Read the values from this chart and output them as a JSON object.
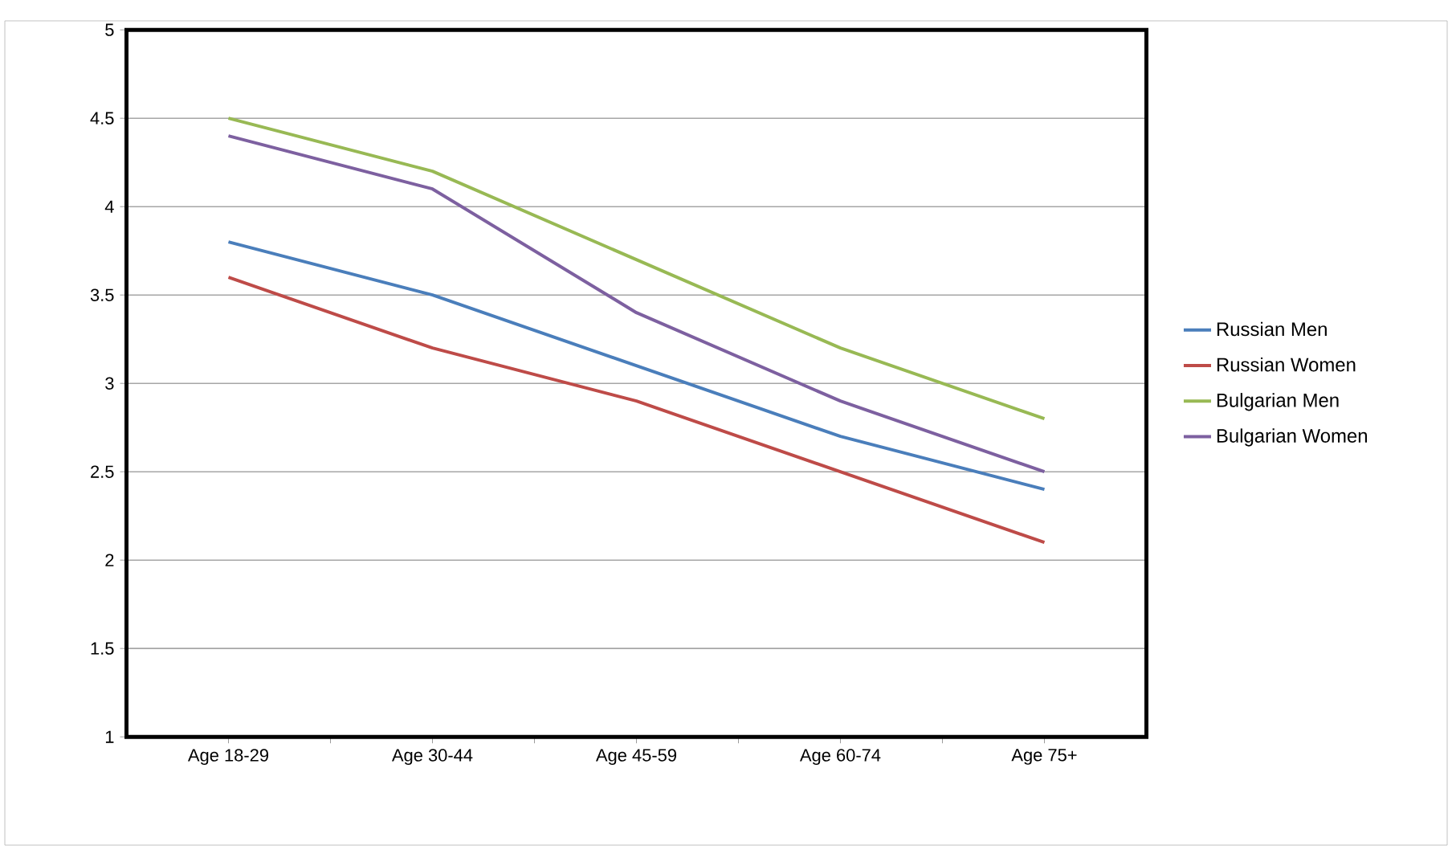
{
  "chart_data": {
    "type": "line",
    "categories": [
      "Age 18-29",
      "Age 30-44",
      "Age 45-59",
      "Age 60-74",
      "Age 75+"
    ],
    "series": [
      {
        "name": "Russian Men",
        "color": "#4a7ebb",
        "values": [
          3.8,
          3.5,
          3.1,
          2.7,
          2.4
        ]
      },
      {
        "name": "Russian Women",
        "color": "#be4b48",
        "values": [
          3.6,
          3.2,
          2.9,
          2.5,
          2.1
        ]
      },
      {
        "name": "Bulgarian Men",
        "color": "#98b954",
        "values": [
          4.5,
          4.2,
          3.7,
          3.2,
          2.8
        ]
      },
      {
        "name": "Bulgarian Women",
        "color": "#7d60a0",
        "values": [
          4.4,
          4.1,
          3.4,
          2.9,
          2.5
        ]
      }
    ],
    "ylim": [
      1,
      5
    ],
    "yticks": [
      1,
      1.5,
      2,
      2.5,
      3,
      3.5,
      4,
      4.5,
      5
    ],
    "grid": "y",
    "legend": "right",
    "marker": "none",
    "line_style": "solid"
  }
}
